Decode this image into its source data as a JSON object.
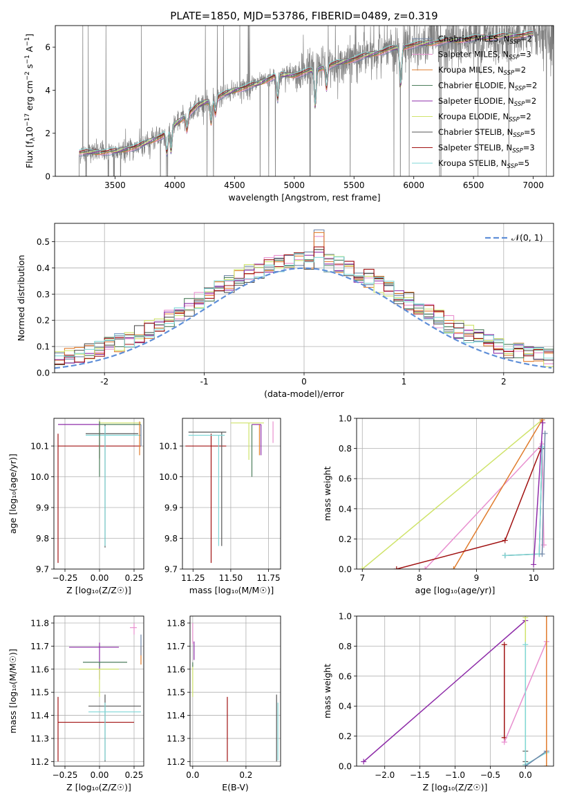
{
  "figure_title": "PLATE=1850, MJD=53786, FIBERID=0489, z=0.319",
  "colors": {
    "chabrier_miles": "#6f86a8",
    "salpeter_miles": "#e88fcf",
    "kroupa_miles": "#e07b2b",
    "chabrier_elodie": "#4b7d5b",
    "salpeter_elodie": "#8e2ca8",
    "kroupa_elodie": "#cfe36a",
    "chabrier_stelib": "#555555",
    "salpeter_stelib": "#a01010",
    "kroupa_stelib": "#7fd7d7",
    "data": "#808080",
    "gaussian": "#5f8fd8"
  },
  "legend_labels": [
    {
      "main": "Chabrier MILES, N",
      "sub": "SSP",
      "tail": "=2",
      "color_key": "chabrier_miles"
    },
    {
      "main": "Salpeter MILES, N",
      "sub": "SSP",
      "tail": "=3",
      "color_key": "salpeter_miles"
    },
    {
      "main": "Kroupa MILES, N",
      "sub": "SSP",
      "tail": "=2",
      "color_key": "kroupa_miles"
    },
    {
      "main": "Chabrier ELODIE, N",
      "sub": "SSP",
      "tail": "=2",
      "color_key": "chabrier_elodie"
    },
    {
      "main": "Salpeter ELODIE, N",
      "sub": "SSP",
      "tail": "=2",
      "color_key": "salpeter_elodie"
    },
    {
      "main": "Kroupa ELODIE, N",
      "sub": "SSP",
      "tail": "=2",
      "color_key": "kroupa_elodie"
    },
    {
      "main": "Chabrier STELIB, N",
      "sub": "SSP",
      "tail": "=5",
      "color_key": "chabrier_stelib"
    },
    {
      "main": "Salpeter STELIB, N",
      "sub": "SSP",
      "tail": "=3",
      "color_key": "salpeter_stelib"
    },
    {
      "main": "Kroupa STELIB, N",
      "sub": "SSP",
      "tail": "=5",
      "color_key": "kroupa_stelib"
    }
  ],
  "chart_data": [
    {
      "id": "spectrum",
      "type": "line",
      "xlabel": "wavelength [Angstrom, rest frame]",
      "ylabel_parts": [
        "Flux [f",
        "λ",
        "10",
        "−17",
        " erg cm",
        "−2",
        " s",
        "−1",
        " A",
        "−1",
        "]"
      ],
      "xlim": [
        3000,
        7170
      ],
      "ylim": [
        0,
        7
      ],
      "xticks": [
        3500,
        4000,
        4500,
        5000,
        5500,
        6000,
        6500,
        7000
      ],
      "yticks": [
        0,
        2,
        4,
        6
      ],
      "continuum_knots": [
        [
          3200,
          1.1
        ],
        [
          3500,
          1.15
        ],
        [
          3700,
          1.4
        ],
        [
          3900,
          1.9
        ],
        [
          4000,
          2.4
        ],
        [
          4200,
          3.3
        ],
        [
          4500,
          4.0
        ],
        [
          4700,
          4.3
        ],
        [
          4850,
          4.7
        ],
        [
          5000,
          4.7
        ],
        [
          5200,
          5.0
        ],
        [
          5400,
          5.3
        ],
        [
          5600,
          5.6
        ],
        [
          5800,
          5.9
        ],
        [
          6000,
          6.1
        ],
        [
          6300,
          6.3
        ],
        [
          6600,
          6.45
        ],
        [
          7000,
          6.6
        ]
      ],
      "legend_position": "upper-right"
    },
    {
      "id": "residuals",
      "type": "histogram",
      "xlabel": "(data-model)/error",
      "ylabel": "Normed distribution",
      "xlim": [
        -2.5,
        2.5
      ],
      "ylim": [
        0,
        0.57
      ],
      "xticks": [
        -2,
        -1,
        0,
        1,
        2
      ],
      "yticks": [
        0,
        0.1,
        0.2,
        0.3,
        0.4,
        0.5
      ],
      "grid": true,
      "bin_width": 0.1,
      "bin_start": -2.5,
      "reference_curve": {
        "name": "𝒩(0, 1)",
        "mean": 0,
        "sigma": 1
      },
      "series_peaks": [
        {
          "key": "chabrier_miles",
          "peak": 0.545
        },
        {
          "key": "salpeter_miles",
          "peak": 0.52
        },
        {
          "key": "kroupa_miles",
          "peak": 0.535
        },
        {
          "key": "chabrier_elodie",
          "peak": 0.47
        },
        {
          "key": "salpeter_elodie",
          "peak": 0.46
        },
        {
          "key": "kroupa_elodie",
          "peak": 0.47
        },
        {
          "key": "chabrier_stelib",
          "peak": 0.47
        },
        {
          "key": "salpeter_stelib",
          "peak": 0.48
        },
        {
          "key": "kroupa_stelib",
          "peak": 0.44
        }
      ],
      "legend_position": "upper-right"
    },
    {
      "id": "age_vs_Z",
      "type": "errorbar",
      "xlabel": "Z [log₁₀(Z/Z☉)]",
      "ylabel": "age  [log₁₀(age/yr)]",
      "xlim": [
        -0.33,
        0.32
      ],
      "ylim": [
        9.7,
        10.19
      ],
      "xticks": [
        -0.25,
        0.0,
        0.25
      ],
      "xtick_labels": [
        "−0.25",
        "0.00",
        "0.25"
      ],
      "yticks": [
        9.7,
        9.8,
        9.9,
        10.0,
        10.1
      ],
      "grid": true,
      "points": [
        {
          "key": "salpeter_stelib",
          "x": -0.3,
          "y": 10.1,
          "xerr": [
            0.0,
            0.6
          ],
          "yerr": [
            0.38,
            0.04
          ]
        },
        {
          "key": "salpeter_elodie",
          "x": 0.0,
          "y": 10.17,
          "xerr": [
            0.3,
            0.0
          ],
          "yerr": [
            0.11,
            0.01
          ]
        },
        {
          "key": "kroupa_elodie",
          "x": 0.0,
          "y": 10.175,
          "xerr": [
            0.0,
            0.3
          ],
          "yerr": [
            0.12,
            0.01
          ]
        },
        {
          "key": "chabrier_stelib",
          "x": 0.04,
          "y": 10.14,
          "xerr": [
            0.14,
            0.24
          ],
          "yerr": [
            0.37,
            0.03
          ]
        },
        {
          "key": "kroupa_stelib",
          "x": 0.04,
          "y": 10.135,
          "xerr": [
            0.14,
            0.26
          ],
          "yerr": [
            0.36,
            0.03
          ]
        },
        {
          "key": "chabrier_elodie",
          "x": 0.0,
          "y": 10.17,
          "xerr": [
            0.0,
            0.3
          ],
          "yerr": [
            0.17,
            0.01
          ]
        },
        {
          "key": "kroupa_miles",
          "x": 0.29,
          "y": 10.17,
          "xerr": [
            0.0,
            0.0
          ],
          "yerr": [
            0.1,
            0.01
          ]
        },
        {
          "key": "chabrier_miles",
          "x": 0.3,
          "y": 10.16,
          "xerr": [
            0.0,
            0.0
          ],
          "yerr": [
            0.06,
            0.01
          ]
        }
      ]
    },
    {
      "id": "age_vs_mass",
      "type": "errorbar",
      "xlabel": "mass [log₁₀(M/M☉)]",
      "ylabel": "",
      "xlim": [
        11.18,
        11.83
      ],
      "ylim": [
        9.7,
        10.19
      ],
      "xticks": [
        11.25,
        11.5,
        11.75
      ],
      "xtick_labels": [
        "11.25",
        "11.50",
        "11.75"
      ],
      "yticks": [
        9.7,
        9.8,
        9.9,
        10.0,
        10.1
      ],
      "grid": true,
      "points": [
        {
          "key": "salpeter_stelib",
          "x": 11.37,
          "y": 10.1,
          "xerr": [
            0.17,
            0.1
          ],
          "yerr": [
            0.38,
            0.04
          ]
        },
        {
          "key": "chabrier_stelib",
          "x": 11.44,
          "y": 10.145,
          "xerr": [
            0.22,
            0.03
          ],
          "yerr": [
            0.37,
            0.0
          ]
        },
        {
          "key": "kroupa_stelib",
          "x": 11.42,
          "y": 10.135,
          "xerr": [
            0.2,
            0.04
          ],
          "yerr": [
            0.36,
            0.0
          ]
        },
        {
          "key": "kroupa_elodie",
          "x": 11.62,
          "y": 10.175,
          "xerr": [
            0.12,
            0.1
          ],
          "yerr": [
            0.12,
            0.0
          ]
        },
        {
          "key": "chabrier_elodie",
          "x": 11.64,
          "y": 10.17,
          "xerr": [
            0.0,
            0.0
          ],
          "yerr": [
            0.17,
            0.0
          ]
        },
        {
          "key": "salpeter_elodie",
          "x": 11.7,
          "y": 10.17,
          "xerr": [
            0.06,
            0.0
          ],
          "yerr": [
            0.1,
            0.0
          ]
        },
        {
          "key": "kroupa_miles",
          "x": 11.69,
          "y": 10.17,
          "xerr": [
            0.0,
            0.0
          ],
          "yerr": [
            0.1,
            0.0
          ]
        },
        {
          "key": "salpeter_miles",
          "x": 11.78,
          "y": 10.17,
          "xerr": [
            0.0,
            0.0
          ],
          "yerr": [
            0.06,
            0.01
          ]
        }
      ]
    },
    {
      "id": "weight_vs_age",
      "type": "line",
      "xlabel": "age  [log₁₀(age/yr)]",
      "ylabel": "mass weight",
      "xlim": [
        6.9,
        10.35
      ],
      "ylim": [
        0,
        1
      ],
      "xticks": [
        7,
        8,
        9,
        10
      ],
      "yticks": [
        0.0,
        0.2,
        0.4,
        0.6,
        0.8,
        1.0
      ],
      "grid": true,
      "series": [
        {
          "key": "kroupa_elodie",
          "points": [
            [
              7.0,
              0.0
            ],
            [
              10.15,
              0.99
            ]
          ]
        },
        {
          "key": "salpeter_miles",
          "points": [
            [
              8.1,
              0.0
            ],
            [
              10.15,
              0.83
            ],
            [
              10.18,
              0.16
            ]
          ]
        },
        {
          "key": "kroupa_miles",
          "points": [
            [
              8.6,
              0.0
            ],
            [
              10.15,
              0.99
            ]
          ]
        },
        {
          "key": "salpeter_stelib",
          "points": [
            [
              7.6,
              0.0
            ],
            [
              9.5,
              0.19
            ],
            [
              10.13,
              0.8
            ]
          ]
        },
        {
          "key": "chabrier_stelib",
          "points": [
            [
              9.5,
              0.09
            ],
            [
              10.1,
              0.1
            ],
            [
              10.15,
              0.8
            ]
          ]
        },
        {
          "key": "kroupa_stelib",
          "points": [
            [
              9.5,
              0.09
            ],
            [
              10.1,
              0.1
            ],
            [
              10.15,
              0.81
            ]
          ]
        },
        {
          "key": "salpeter_elodie",
          "points": [
            [
              10.0,
              0.03
            ],
            [
              10.16,
              0.97
            ]
          ]
        },
        {
          "key": "chabrier_miles",
          "points": [
            [
              10.15,
              0.1
            ],
            [
              10.2,
              0.9
            ]
          ]
        }
      ]
    },
    {
      "id": "mass_vs_Z",
      "type": "errorbar",
      "xlabel": "Z [log₁₀(Z/Z☉)]",
      "ylabel": "mass [log₁₀(M/M☉)]",
      "xlim": [
        -0.33,
        0.32
      ],
      "ylim": [
        11.18,
        11.83
      ],
      "xticks": [
        -0.25,
        0.0,
        0.25
      ],
      "xtick_labels": [
        "−0.25",
        "0.00",
        "0.25"
      ],
      "yticks": [
        11.2,
        11.3,
        11.4,
        11.5,
        11.6,
        11.7,
        11.8
      ],
      "grid": true,
      "points": [
        {
          "key": "salpeter_stelib",
          "x": -0.3,
          "y": 11.37,
          "xerr": [
            0.0,
            0.55
          ],
          "yerr": [
            0.17,
            0.11
          ]
        },
        {
          "key": "salpeter_elodie",
          "x": 0.0,
          "y": 11.695,
          "xerr": [
            0.22,
            0.14
          ],
          "yerr": [
            0.14,
            0.02
          ]
        },
        {
          "key": "chabrier_elodie",
          "x": 0.0,
          "y": 11.63,
          "xerr": [
            0.12,
            0.2
          ],
          "yerr": [
            0.02,
            0.0
          ]
        },
        {
          "key": "kroupa_elodie",
          "x": 0.0,
          "y": 11.6,
          "xerr": [
            0.15,
            0.14
          ],
          "yerr": [
            0.12,
            0.0
          ]
        },
        {
          "key": "chabrier_stelib",
          "x": 0.04,
          "y": 11.44,
          "xerr": [
            0.12,
            0.26
          ],
          "yerr": [
            0.24,
            0.05
          ]
        },
        {
          "key": "kroupa_stelib",
          "x": 0.04,
          "y": 11.415,
          "xerr": [
            0.12,
            0.26
          ],
          "yerr": [
            0.21,
            0.04
          ]
        },
        {
          "key": "salpeter_miles",
          "x": 0.25,
          "y": 11.78,
          "xerr": [
            0.03,
            0.02
          ],
          "yerr": [
            0.03,
            0.02
          ]
        },
        {
          "key": "kroupa_miles",
          "x": 0.3,
          "y": 11.68,
          "xerr": [
            0.0,
            0.0
          ],
          "yerr": [
            0.06,
            0.02
          ]
        },
        {
          "key": "chabrier_miles",
          "x": 0.3,
          "y": 11.7,
          "xerr": [
            0.0,
            0.0
          ],
          "yerr": [
            0.04,
            0.05
          ]
        }
      ]
    },
    {
      "id": "mass_vs_ebv",
      "type": "errorbar",
      "xlabel": "E(B-V)",
      "ylabel": "",
      "xlim": [
        -0.01,
        0.33
      ],
      "ylim": [
        11.18,
        11.83
      ],
      "xticks": [
        0.0,
        0.2
      ],
      "xtick_labels": [
        "0.0",
        "0.2"
      ],
      "yticks": [
        11.2,
        11.3,
        11.4,
        11.5,
        11.6,
        11.7,
        11.8
      ],
      "grid": true,
      "points": [
        {
          "key": "salpeter_miles",
          "x": 0.0,
          "y": 11.76,
          "xerr": [
            0.0,
            0.0
          ],
          "yerr": [
            0.05,
            0.04
          ]
        },
        {
          "key": "kroupa_elodie",
          "x": 0.0,
          "y": 11.6,
          "xerr": [
            0.0,
            0.0
          ],
          "yerr": [
            0.12,
            0.02
          ]
        },
        {
          "key": "salpeter_elodie",
          "x": 0.005,
          "y": 11.69,
          "xerr": [
            0.0,
            0.0
          ],
          "yerr": [
            0.05,
            0.03
          ]
        },
        {
          "key": "chabrier_elodie",
          "x": 0.0,
          "y": 11.63,
          "xerr": [
            0.0,
            0.0
          ],
          "yerr": [
            0.02,
            0.0
          ]
        },
        {
          "key": "salpeter_stelib",
          "x": 0.13,
          "y": 11.37,
          "xerr": [
            0.0,
            0.0
          ],
          "yerr": [
            0.17,
            0.11
          ]
        },
        {
          "key": "chabrier_stelib",
          "x": 0.315,
          "y": 11.44,
          "xerr": [
            0.0,
            0.0
          ],
          "yerr": [
            0.24,
            0.05
          ]
        },
        {
          "key": "kroupa_stelib",
          "x": 0.32,
          "y": 11.415,
          "xerr": [
            0.0,
            0.0
          ],
          "yerr": [
            0.21,
            0.04
          ]
        }
      ]
    },
    {
      "id": "weight_vs_Z",
      "type": "line",
      "xlabel": "Z [log₁₀(Z/Z☉)]",
      "ylabel": "mass weight",
      "xlim": [
        -2.4,
        0.4
      ],
      "ylim": [
        0,
        1
      ],
      "xticks": [
        -2.0,
        -1.5,
        -1.0,
        -0.5,
        0.0
      ],
      "xtick_labels": [
        "−2.0",
        "−1.5",
        "−1.0",
        "−0.5",
        "0.0"
      ],
      "yticks": [
        0.0,
        0.2,
        0.4,
        0.6,
        0.8,
        1.0
      ],
      "grid": true,
      "series": [
        {
          "key": "salpeter_elodie",
          "points": [
            [
              -2.3,
              0.03
            ],
            [
              0.0,
              0.97
            ]
          ]
        },
        {
          "key": "salpeter_stelib",
          "points": [
            [
              -0.3,
              0.19
            ],
            [
              -0.3,
              0.81
            ]
          ]
        },
        {
          "key": "salpeter_miles",
          "points": [
            [
              -0.3,
              0.16
            ],
            [
              0.3,
              0.83
            ]
          ]
        },
        {
          "key": "chabrier_stelib",
          "points": [
            [
              0.0,
              0.1
            ],
            [
              0.0,
              0.03
            ]
          ]
        },
        {
          "key": "kroupa_elodie",
          "points": [
            [
              0.0,
              0.01
            ],
            [
              0.0,
              0.99
            ]
          ]
        },
        {
          "key": "kroupa_stelib",
          "points": [
            [
              0.0,
              0.81
            ],
            [
              0.0,
              0.01
            ],
            [
              0.3,
              0.09
            ]
          ]
        },
        {
          "key": "chabrier_miles",
          "points": [
            [
              0.0,
              0.0
            ],
            [
              0.3,
              0.1
            ]
          ]
        },
        {
          "key": "kroupa_miles",
          "points": [
            [
              0.3,
              0.0
            ],
            [
              0.3,
              1.0
            ]
          ]
        }
      ]
    }
  ]
}
